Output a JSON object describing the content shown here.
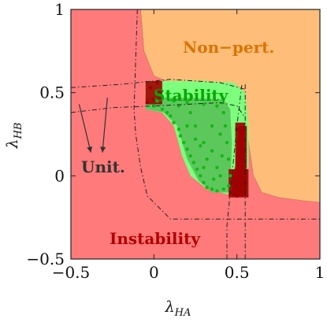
{
  "chart_data": {
    "type": "scatter",
    "title": "",
    "xlabel": "λ_HA",
    "ylabel": "λ_HB",
    "xlabel_main": "λ",
    "xlabel_sub": "HA",
    "ylabel_main": "λ",
    "ylabel_sub": "HB",
    "xlim": [
      -0.5,
      1
    ],
    "ylim": [
      -0.5,
      1
    ],
    "x_ticks": [
      -0.5,
      0,
      0.5,
      1
    ],
    "y_ticks": [
      -0.5,
      0,
      0.5,
      1
    ],
    "x_tick_labels": [
      "−0.5",
      "0",
      "0.5",
      "1"
    ],
    "y_tick_labels": [
      "−0.5",
      "0",
      "0.5",
      "1"
    ],
    "grid": false,
    "legend": "none",
    "colors": {
      "instability": "#ff7a7a",
      "non_perturbative": "#ffbd7a",
      "stability_light": "#7dff7d",
      "stability_dark": "#5cc85c",
      "green_points": "#14b814",
      "red_points": "#a00000",
      "instability_text": "#b30000",
      "nonpert_text": "#d97400",
      "stability_text": "#00a800",
      "unitarity_text": "#333333"
    },
    "region_labels": {
      "non_perturbative": "Non−pert.",
      "stability": "Stability",
      "unitarity": "Unit.",
      "instability": "Instability"
    },
    "regions": {
      "non_perturbative_boundary": [
        [
          -0.08,
          1
        ],
        [
          -0.06,
          0.75
        ],
        [
          0.0,
          0.6
        ],
        [
          0.1,
          0.56
        ],
        [
          0.3,
          0.55
        ],
        [
          0.45,
          0.54
        ],
        [
          0.52,
          0.5
        ],
        [
          0.55,
          0.4
        ],
        [
          0.57,
          0.2
        ],
        [
          0.6,
          0.0
        ],
        [
          0.65,
          -0.1
        ],
        [
          0.75,
          -0.13
        ],
        [
          0.9,
          -0.15
        ],
        [
          1.0,
          -0.16
        ]
      ],
      "stability_light": [
        [
          -0.05,
          0.57
        ],
        [
          0.3,
          0.57
        ],
        [
          0.48,
          0.56
        ],
        [
          0.55,
          0.5
        ],
        [
          0.57,
          0.3
        ],
        [
          0.57,
          -0.12
        ],
        [
          0.48,
          -0.12
        ],
        [
          0.32,
          -0.08
        ],
        [
          0.22,
          0.0
        ],
        [
          0.17,
          0.12
        ],
        [
          0.12,
          0.3
        ],
        [
          0.05,
          0.38
        ],
        [
          -0.05,
          0.4
        ]
      ],
      "stability_dark": [
        [
          -0.05,
          0.47
        ],
        [
          0.2,
          0.47
        ],
        [
          0.42,
          0.46
        ],
        [
          0.46,
          0.4
        ],
        [
          0.47,
          0.2
        ],
        [
          0.46,
          -0.1
        ],
        [
          0.35,
          -0.1
        ],
        [
          0.27,
          -0.03
        ],
        [
          0.2,
          0.1
        ],
        [
          0.14,
          0.3
        ],
        [
          0.06,
          0.38
        ],
        [
          -0.05,
          0.4
        ]
      ],
      "red_cluster_boxes": [
        {
          "x": [
            -0.05,
            0.05
          ],
          "y": [
            0.43,
            0.57
          ]
        },
        {
          "x": [
            0.45,
            0.57
          ],
          "y": [
            -0.13,
            0.04
          ]
        },
        {
          "x": [
            0.49,
            0.55
          ],
          "y": [
            0.04,
            0.32
          ]
        }
      ],
      "red_clusters_bottom_right": [
        [
          0.47,
          -0.12
        ],
        [
          0.56,
          -0.12
        ],
        [
          0.56,
          0.3
        ],
        [
          0.51,
          0.3
        ],
        [
          0.49,
          0.05
        ],
        [
          0.47,
          0.0
        ]
      ]
    },
    "unitarity_curves": [
      [
        [
          -0.5,
          0.53
        ],
        [
          -0.2,
          0.55
        ],
        [
          0.1,
          0.58
        ],
        [
          0.4,
          0.56
        ],
        [
          0.55,
          0.52
        ]
      ],
      [
        [
          -0.5,
          0.38
        ],
        [
          -0.25,
          0.41
        ],
        [
          0.0,
          0.42
        ],
        [
          0.2,
          0.43
        ],
        [
          0.4,
          0.44
        ],
        [
          0.5,
          0.42
        ],
        [
          0.55,
          0.35
        ]
      ],
      [
        [
          -0.1,
          1.0
        ],
        [
          -0.11,
          0.7
        ],
        [
          -0.12,
          0.4
        ],
        [
          -0.11,
          0.25
        ],
        [
          -0.08,
          0.05
        ],
        [
          -0.04,
          -0.12
        ],
        [
          0.1,
          -0.26
        ],
        [
          0.4,
          -0.26
        ],
        [
          1.0,
          -0.26
        ]
      ],
      [
        [
          0.44,
          -0.5
        ],
        [
          0.44,
          -0.3
        ],
        [
          0.45,
          -0.2
        ],
        [
          0.47,
          0.0
        ],
        [
          0.5,
          0.3
        ],
        [
          0.53,
          0.55
        ]
      ],
      [
        [
          0.55,
          -0.5
        ],
        [
          0.55,
          -0.2
        ],
        [
          0.55,
          0.2
        ],
        [
          0.55,
          0.55
        ]
      ]
    ],
    "arrows": [
      {
        "from": [
          -0.45,
          0.43
        ],
        "to": [
          -0.38,
          0.14
        ]
      },
      {
        "from": [
          -0.28,
          0.47
        ],
        "to": [
          -0.31,
          0.14
        ]
      }
    ],
    "series": [
      {
        "name": "",
        "color": "#14b814",
        "points": [
          [
            0.0,
            0.42
          ],
          [
            0.02,
            0.45
          ],
          [
            0.05,
            0.4
          ],
          [
            0.08,
            0.38
          ],
          [
            0.1,
            0.36
          ],
          [
            0.12,
            0.32
          ],
          [
            0.15,
            0.28
          ],
          [
            0.16,
            0.24
          ],
          [
            0.18,
            0.2
          ],
          [
            0.2,
            0.16
          ],
          [
            0.22,
            0.12
          ],
          [
            0.24,
            0.08
          ],
          [
            0.26,
            0.04
          ],
          [
            0.28,
            0.0
          ],
          [
            0.3,
            -0.04
          ],
          [
            0.32,
            -0.07
          ],
          [
            0.35,
            -0.08
          ],
          [
            0.38,
            -0.09
          ],
          [
            0.42,
            -0.08
          ],
          [
            0.45,
            -0.06
          ],
          [
            0.46,
            0.0
          ],
          [
            0.45,
            0.1
          ],
          [
            0.44,
            0.2
          ],
          [
            0.43,
            0.3
          ],
          [
            0.42,
            0.38
          ],
          [
            0.38,
            0.42
          ],
          [
            0.3,
            0.43
          ],
          [
            0.2,
            0.44
          ],
          [
            0.12,
            0.45
          ],
          [
            0.25,
            0.3
          ],
          [
            0.3,
            0.2
          ],
          [
            0.35,
            0.15
          ],
          [
            0.38,
            0.05
          ],
          [
            0.4,
            0.0
          ],
          [
            0.32,
            0.1
          ],
          [
            0.28,
            0.18
          ],
          [
            0.35,
            0.3
          ],
          [
            0.22,
            0.38
          ],
          [
            0.15,
            0.42
          ],
          [
            0.4,
            0.25
          ],
          [
            0.41,
            0.12
          ],
          [
            0.36,
            -0.02
          ],
          [
            0.3,
            0.05
          ],
          [
            0.25,
            0.22
          ],
          [
            0.2,
            0.3
          ]
        ]
      },
      {
        "name": "",
        "color": "#a00000",
        "points": [
          [
            -0.04,
            0.44
          ],
          [
            0.0,
            0.46
          ],
          [
            0.03,
            0.5
          ],
          [
            -0.02,
            0.53
          ],
          [
            0.02,
            0.56
          ],
          [
            0.04,
            0.48
          ],
          [
            0.47,
            -0.1
          ],
          [
            0.5,
            -0.12
          ],
          [
            0.53,
            -0.1
          ],
          [
            0.55,
            -0.05
          ],
          [
            0.52,
            0.0
          ],
          [
            0.5,
            0.05
          ],
          [
            0.52,
            0.1
          ],
          [
            0.54,
            0.15
          ],
          [
            0.51,
            0.2
          ],
          [
            0.53,
            0.25
          ],
          [
            0.5,
            0.28
          ]
        ]
      }
    ]
  }
}
